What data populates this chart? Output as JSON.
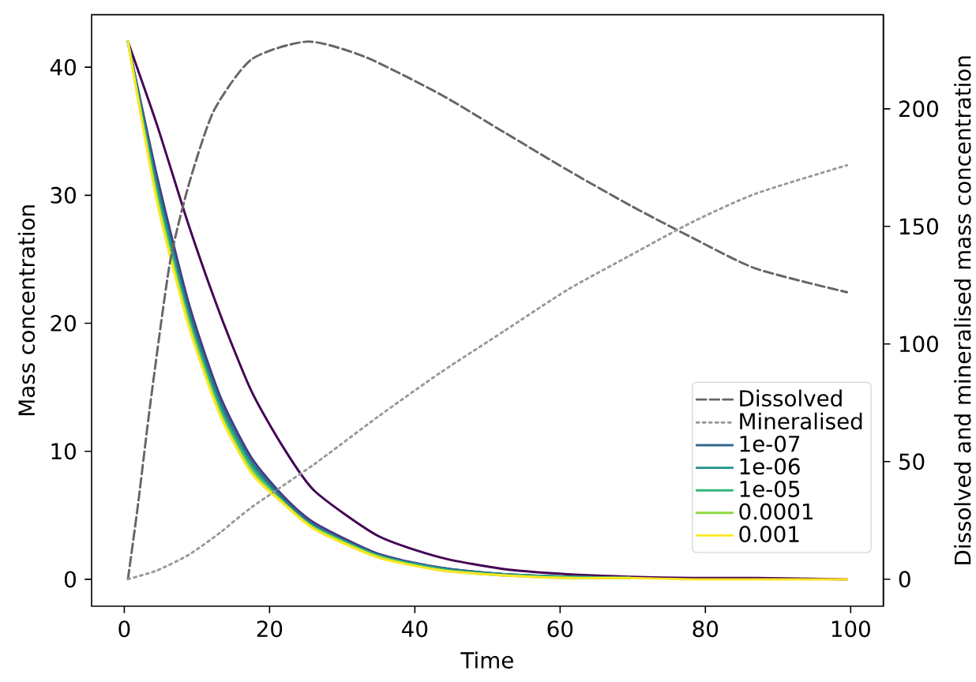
{
  "chart_data": {
    "type": "line",
    "xlabel": "Time",
    "ylabel": "Mass concentration",
    "y2label": "Dissolved and mineralised mass concentration",
    "x": [
      0.5,
      4.5,
      8.9,
      13.2,
      17.5,
      21.9,
      26.2,
      34.9,
      43.6,
      52.3,
      61,
      69.6,
      78.3,
      87,
      99.5
    ],
    "series": [
      {
        "name": "Dissolved",
        "color": "#666666",
        "line_style": "dashed",
        "axis": "y2",
        "x": [
          0.5,
          1.9,
          3.6,
          6.25,
          8.9,
          12.3,
          17.5,
          25.3,
          33.2,
          43.6,
          52.3,
          61,
          69.6,
          78.3,
          87,
          99.5
        ],
        "values": [
          0,
          32,
          75,
          134,
          168,
          199,
          221,
          228.6,
          222,
          206,
          190,
          174,
          159,
          145,
          132,
          122
        ]
      },
      {
        "name": "Mineralised",
        "color": "#999999",
        "line_style": "dotted",
        "axis": "y2",
        "x": [
          0.5,
          4.5,
          8.9,
          13.2,
          17.5,
          26.2,
          34.9,
          43.6,
          52.3,
          61,
          69.6,
          78.3,
          87,
          99.5
        ],
        "values": [
          0,
          3.7,
          10.4,
          19.8,
          30.5,
          49,
          69,
          88,
          105.5,
          123,
          137.6,
          152,
          164,
          176
        ]
      },
      {
        "color": "#440154",
        "values": [
          42,
          35.5,
          27.6,
          20.7,
          14.7,
          10.3,
          6.9,
          3.4,
          1.7,
          0.8,
          0.4,
          0.2,
          0.1,
          0.1,
          0.0
        ]
      },
      {
        "color": "#443983",
        "values": [
          42,
          31.5,
          21.5,
          14.3,
          9.5,
          6.5,
          4.4,
          2.0,
          0.9,
          0.4,
          0.2,
          0.1,
          null,
          null,
          null
        ]
      },
      {
        "name": "1e-07",
        "color": "#31688e",
        "values": [
          42,
          31.0,
          21.0,
          13.9,
          9.2,
          6.3,
          4.2,
          1.9,
          0.9,
          0.4,
          0.2,
          0.1,
          null,
          null,
          null
        ]
      },
      {
        "name": "1e-06",
        "color": "#21918c",
        "values": [
          42,
          30.6,
          20.6,
          13.6,
          9.0,
          6.1,
          4.1,
          1.9,
          0.8,
          0.4,
          0.2,
          0.1,
          null,
          null,
          null
        ]
      },
      {
        "name": "1e-05",
        "color": "#35b779",
        "values": [
          42,
          30.2,
          20.3,
          13.3,
          8.8,
          6.0,
          4.0,
          1.8,
          0.8,
          0.3,
          0.2,
          0.1,
          null,
          null,
          null
        ]
      },
      {
        "name": "0.0001",
        "color": "#90d743",
        "values": [
          42,
          29.8,
          20.0,
          13.0,
          8.5,
          6.0,
          4.0,
          1.8,
          0.7,
          0.3,
          0.1,
          0.1,
          null,
          null,
          null
        ]
      },
      {
        "name": "0.001",
        "color": "#fde725",
        "values": [
          42,
          29.5,
          19.7,
          12.8,
          8.3,
          5.9,
          3.9,
          1.7,
          0.7,
          0.3,
          0.1,
          0.1,
          0.0,
          0.0,
          0.0
        ]
      }
    ],
    "xlim": [
      -4.5,
      104.5
    ],
    "ylim": [
      -2.1,
      44.1
    ],
    "y2lim": [
      -11.5,
      240
    ],
    "xticks": [
      0,
      20,
      40,
      60,
      80,
      100
    ],
    "yticks": [
      0,
      10,
      20,
      30,
      40
    ],
    "y2ticks": [
      0,
      50,
      100,
      150,
      200
    ],
    "legend": "bottom right"
  }
}
